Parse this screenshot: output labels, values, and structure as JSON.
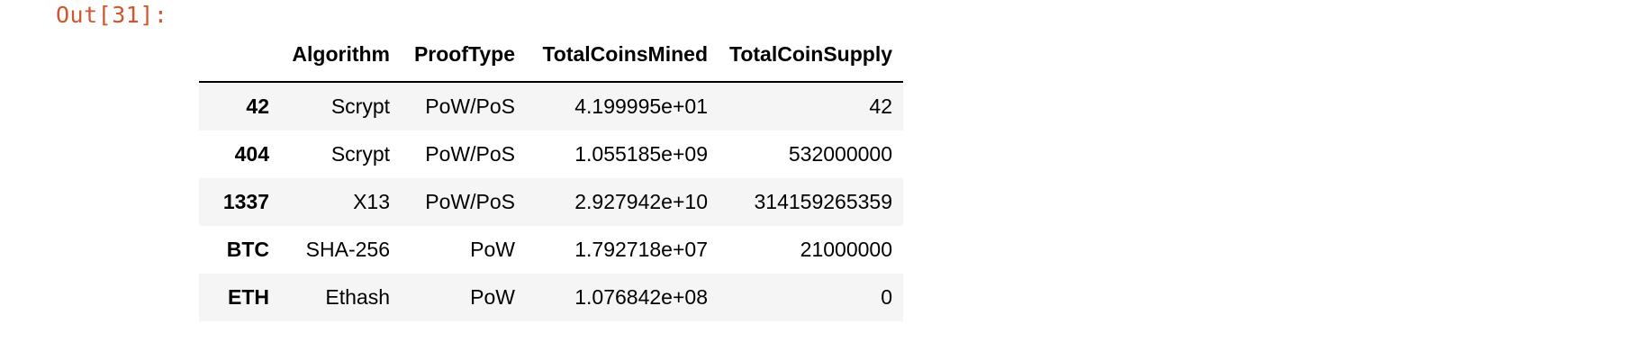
{
  "cell": {
    "prompt": "Out[31]:"
  },
  "dataframe": {
    "columns": [
      "Algorithm",
      "ProofType",
      "TotalCoinsMined",
      "TotalCoinSupply"
    ],
    "rows": [
      {
        "index": "42",
        "Algorithm": "Scrypt",
        "ProofType": "PoW/PoS",
        "TotalCoinsMined": "4.199995e+01",
        "TotalCoinSupply": "42"
      },
      {
        "index": "404",
        "Algorithm": "Scrypt",
        "ProofType": "PoW/PoS",
        "TotalCoinsMined": "1.055185e+09",
        "TotalCoinSupply": "532000000"
      },
      {
        "index": "1337",
        "Algorithm": "X13",
        "ProofType": "PoW/PoS",
        "TotalCoinsMined": "2.927942e+10",
        "TotalCoinSupply": "314159265359"
      },
      {
        "index": "BTC",
        "Algorithm": "SHA-256",
        "ProofType": "PoW",
        "TotalCoinsMined": "1.792718e+07",
        "TotalCoinSupply": "21000000"
      },
      {
        "index": "ETH",
        "Algorithm": "Ethash",
        "ProofType": "PoW",
        "TotalCoinsMined": "1.076842e+08",
        "TotalCoinSupply": "0"
      }
    ]
  }
}
